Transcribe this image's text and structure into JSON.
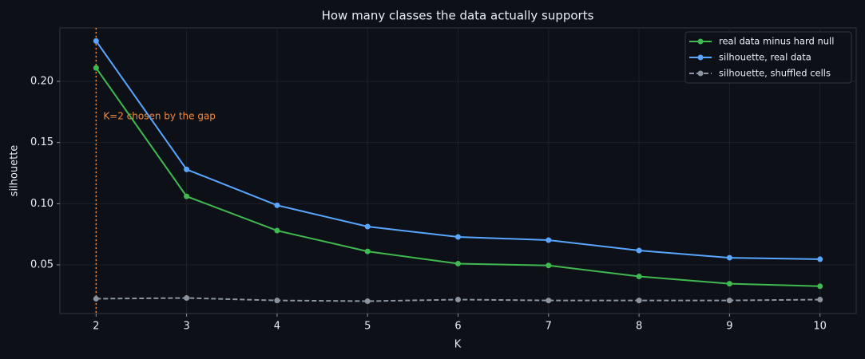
{
  "chart_data": {
    "type": "line",
    "title": "How many classes the data actually supports",
    "x_label": "K",
    "y_label": "silhouette",
    "x": [
      2,
      3,
      4,
      5,
      6,
      7,
      8,
      9,
      10
    ],
    "series": [
      {
        "name": "real data minus hard null",
        "color": "#3fb950",
        "style": "solid",
        "values": [
          0.211,
          0.106,
          0.078,
          0.061,
          0.051,
          0.0495,
          0.0405,
          0.0346,
          0.0325
        ]
      },
      {
        "name": "silhouette, real data",
        "color": "#58a6ff",
        "style": "solid",
        "values": [
          0.233,
          0.128,
          0.0987,
          0.0813,
          0.0728,
          0.0702,
          0.0617,
          0.0558,
          0.0546
        ]
      },
      {
        "name": "silhouette, shuffled cells",
        "color": "#8b949e",
        "style": "dashed",
        "values": [
          0.0223,
          0.0229,
          0.0209,
          0.0203,
          0.0216,
          0.0209,
          0.0209,
          0.0209,
          0.0216
        ]
      }
    ],
    "xlim": [
      1.6,
      10.4
    ],
    "ylim": [
      0.0102,
      0.2437
    ],
    "xticks": [
      2,
      3,
      4,
      5,
      6,
      7,
      8,
      9,
      10
    ],
    "yticks": [
      0.05,
      {
        "value": 0.1,
        "label": "0.10"
      },
      0.15,
      {
        "value": 0.2,
        "label": "0.20"
      }
    ],
    "grid": true,
    "legend": "upper right",
    "vline": {
      "x": 2,
      "color": "#f0883e",
      "label": "K=2 chosen by the gap"
    }
  }
}
